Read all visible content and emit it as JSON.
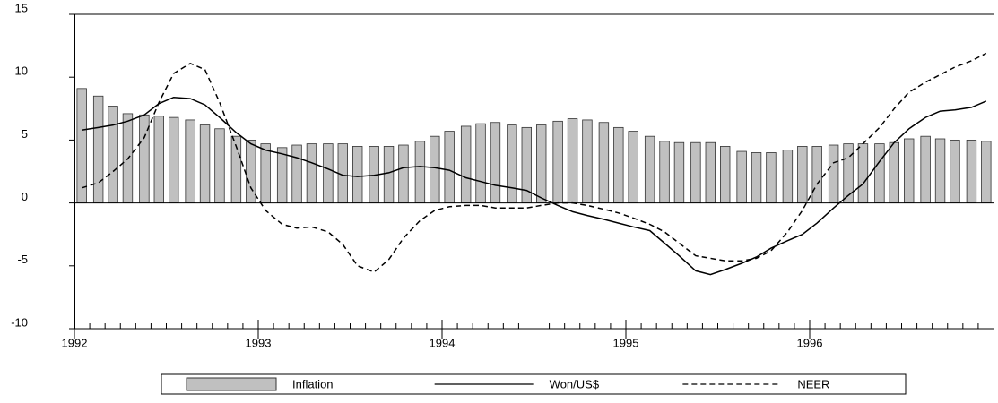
{
  "chart_data": {
    "type": "bar_line",
    "x": [
      1992.04,
      1992.13,
      1992.21,
      1992.29,
      1992.38,
      1992.46,
      1992.54,
      1992.63,
      1992.71,
      1992.79,
      1992.88,
      1992.96,
      1993.04,
      1993.13,
      1993.21,
      1993.29,
      1993.38,
      1993.46,
      1993.54,
      1993.63,
      1993.71,
      1993.79,
      1993.88,
      1993.96,
      1994.04,
      1994.13,
      1994.21,
      1994.29,
      1994.38,
      1994.46,
      1994.54,
      1994.63,
      1994.71,
      1994.79,
      1994.88,
      1994.96,
      1995.04,
      1995.13,
      1995.21,
      1995.29,
      1995.38,
      1995.46,
      1995.54,
      1995.63,
      1995.71,
      1995.79,
      1995.88,
      1995.96,
      1996.04,
      1996.13,
      1996.21,
      1996.29,
      1996.38,
      1996.46,
      1996.54,
      1996.63,
      1996.71,
      1996.79,
      1996.88,
      1996.96
    ],
    "series": [
      {
        "name": "Inflation",
        "kind": "bar",
        "color": "#c0c0c0",
        "values": [
          9.1,
          8.5,
          7.7,
          7.1,
          7.0,
          6.9,
          6.8,
          6.6,
          6.2,
          5.9,
          5.3,
          5.0,
          4.7,
          4.4,
          4.6,
          4.7,
          4.7,
          4.7,
          4.5,
          4.5,
          4.5,
          4.6,
          4.9,
          5.3,
          5.7,
          6.1,
          6.3,
          6.4,
          6.2,
          6.0,
          6.2,
          6.5,
          6.7,
          6.6,
          6.4,
          6.0,
          5.7,
          5.3,
          4.9,
          4.8,
          4.8,
          4.8,
          4.5,
          4.1,
          4.0,
          4.0,
          4.2,
          4.5,
          4.5,
          4.6,
          4.7,
          4.7,
          4.7,
          4.8,
          5.1,
          5.3,
          5.1,
          5.0,
          5.0,
          4.9
        ]
      },
      {
        "name": "Won/US$",
        "kind": "line",
        "dash": "solid",
        "color": "#000000",
        "values": [
          5.8,
          6.0,
          6.2,
          6.5,
          7.0,
          7.9,
          8.4,
          8.3,
          7.8,
          6.8,
          5.6,
          4.7,
          4.2,
          3.9,
          3.6,
          3.2,
          2.7,
          2.2,
          2.1,
          2.2,
          2.4,
          2.8,
          2.9,
          2.8,
          2.6,
          2.0,
          1.7,
          1.4,
          1.2,
          1.0,
          0.4,
          -0.2,
          -0.7,
          -1.0,
          -1.3,
          -1.6,
          -1.9,
          -2.2,
          -3.2,
          -4.2,
          -5.4,
          -5.7,
          -5.3,
          -4.8,
          -4.3,
          -3.6,
          -3.0,
          -2.5,
          -1.6,
          -0.4,
          0.6,
          1.5,
          3.3,
          4.8,
          5.9,
          6.8,
          7.3,
          7.4,
          7.6,
          8.1
        ]
      },
      {
        "name": "NEER",
        "kind": "line",
        "dash": "dashed",
        "color": "#000000",
        "values": [
          1.2,
          1.6,
          2.5,
          3.5,
          5.2,
          8.0,
          10.3,
          11.1,
          10.6,
          8.0,
          4.5,
          1.2,
          -0.6,
          -1.7,
          -2.0,
          -1.9,
          -2.3,
          -3.3,
          -5.0,
          -5.5,
          -4.5,
          -2.8,
          -1.4,
          -0.6,
          -0.3,
          -0.2,
          -0.2,
          -0.4,
          -0.4,
          -0.4,
          -0.2,
          0.0,
          0.0,
          -0.2,
          -0.5,
          -0.8,
          -1.2,
          -1.7,
          -2.3,
          -3.2,
          -4.2,
          -4.4,
          -4.6,
          -4.6,
          -4.4,
          -3.8,
          -2.3,
          -0.6,
          1.5,
          3.2,
          3.6,
          4.7,
          6.0,
          7.5,
          8.8,
          9.6,
          10.2,
          10.8,
          11.3,
          11.9
        ]
      }
    ],
    "xlim": [
      1992,
      1997
    ],
    "xticks": [
      1992,
      1993,
      1994,
      1995,
      1996
    ],
    "ylim": [
      -10,
      15
    ],
    "yticks": [
      -10,
      -5,
      0,
      5,
      10,
      15
    ],
    "legend": "bottom"
  }
}
